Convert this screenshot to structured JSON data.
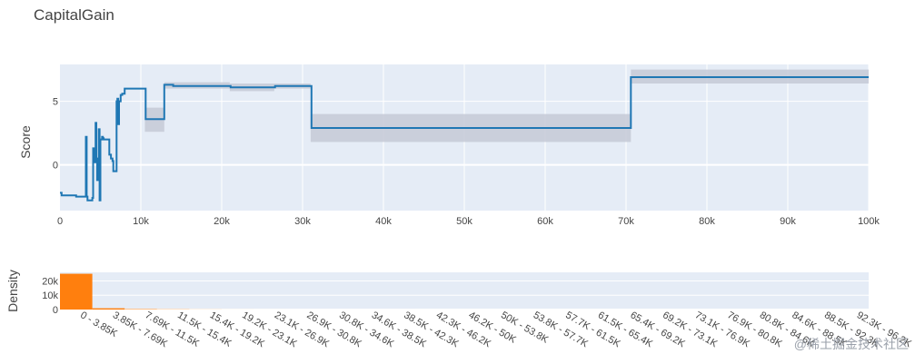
{
  "chart_data": [
    {
      "type": "line",
      "title": "CapitalGain",
      "xlabel": "",
      "ylabel": "Score",
      "xlim": [
        0,
        100000
      ],
      "ylim": [
        -3.6,
        7.9
      ],
      "x_ticks": [
        0,
        10000,
        20000,
        30000,
        40000,
        50000,
        60000,
        70000,
        80000,
        90000,
        100000
      ],
      "x_tick_labels": [
        "0",
        "10k",
        "20k",
        "30k",
        "40k",
        "50k",
        "60k",
        "70k",
        "80k",
        "90k",
        "100k"
      ],
      "y_ticks": [
        0,
        5
      ],
      "y_tick_labels": [
        "0",
        "5"
      ],
      "grid": true,
      "band_color": "#c5cad6",
      "line_color": "#1f77b4",
      "series": [
        {
          "x": [
            0,
            200,
            1000,
            2000,
            3000,
            3200,
            3300,
            3400,
            3800,
            4000,
            4100,
            4200,
            4400,
            4500,
            4600,
            4800,
            4900,
            5000,
            5200,
            5300,
            5400,
            6000,
            6100,
            6300,
            6500,
            6600,
            7000,
            7100,
            7200,
            7300,
            7500,
            7700,
            8000,
            8300,
            8400,
            10500,
            10600,
            12800,
            12900,
            14000,
            21000,
            21100,
            26500,
            26600,
            31000,
            31100,
            70500,
            70600,
            100000
          ],
          "y": [
            -2.2,
            -2.4,
            -2.4,
            -2.5,
            -2.5,
            2.2,
            -2.5,
            -2.8,
            -2.8,
            -2.6,
            1.3,
            0.2,
            3.3,
            0.5,
            -1.2,
            2.8,
            -2.8,
            2.0,
            2.2,
            2.1,
            2.0,
            2.0,
            0.8,
            0.5,
            0.3,
            -0.5,
            5.0,
            5.2,
            3.2,
            5.0,
            5.5,
            5.6,
            6.0,
            6.0,
            6.0,
            6.0,
            3.6,
            3.6,
            6.3,
            6.2,
            6.2,
            6.1,
            6.1,
            6.2,
            6.2,
            2.9,
            2.9,
            6.9,
            6.9
          ],
          "band": [
            [
              10500,
              12900,
              2.6,
              4.5
            ],
            [
              12900,
              21000,
              6.0,
              6.5
            ],
            [
              21000,
              26500,
              5.8,
              6.4
            ],
            [
              26500,
              31000,
              6.0,
              6.4
            ],
            [
              31000,
              70600,
              1.8,
              4.0
            ],
            [
              70600,
              100000,
              6.4,
              7.5
            ]
          ]
        }
      ]
    },
    {
      "type": "bar",
      "title": "",
      "xlabel": "",
      "ylabel": "Density",
      "ylim": [
        0,
        26000
      ],
      "y_ticks": [
        0,
        10000,
        20000
      ],
      "y_tick_labels": [
        "0",
        "10k",
        "20k"
      ],
      "bar_color": "#ff7f0e",
      "categories": [
        "0 - 3.85K",
        "3.85K - 7.69K",
        "7.69K - 11.5K",
        "11.5K - 15.4K",
        "15.4K - 19.2K",
        "19.2K - 23.1K",
        "23.1K - 26.9K",
        "26.9K - 30.8K",
        "30.8K - 34.6K",
        "34.6K - 38.5K",
        "38.5K - 42.3K",
        "42.3K - 46.2K",
        "46.2K - 50K",
        "50K - 53.8K",
        "53.8K - 57.7K",
        "57.7K - 61.5K",
        "61.5K - 65.4K",
        "65.4K - 69.2K",
        "69.2K - 73.1K",
        "73.1K - 76.9K",
        "76.9K - 80.8K",
        "80.8K - 84.6K",
        "84.6K - 88.5K",
        "88.5K - 92.3K",
        "92.3K - 96.2K"
      ],
      "values": [
        25000,
        900,
        300,
        150,
        60,
        20,
        10,
        5,
        3,
        2,
        2,
        1,
        1,
        1,
        1,
        1,
        1,
        1,
        1,
        1,
        1,
        1,
        1,
        1,
        1
      ]
    }
  ],
  "watermark": "@稀土掘金技术社区"
}
